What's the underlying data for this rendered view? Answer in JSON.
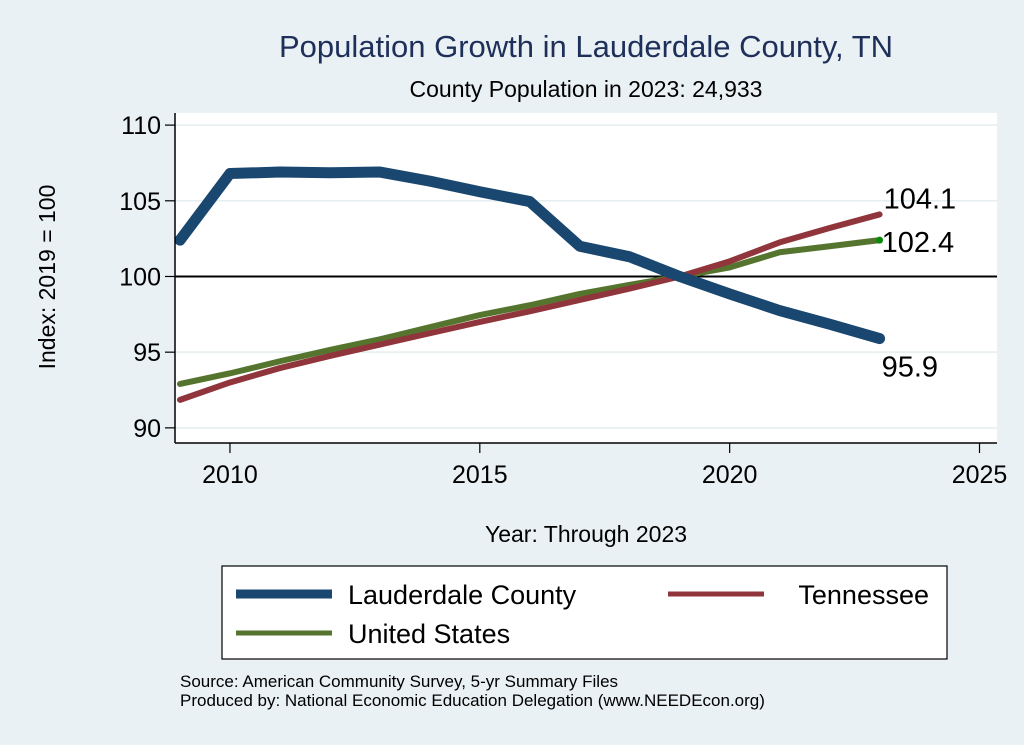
{
  "chart_data": {
    "type": "line",
    "title": "Population Growth in Lauderdale County, TN",
    "subtitle": "County Population in 2023: 24,933",
    "xlabel": "Year: Through 2023",
    "ylabel": "Index: 2019 = 100",
    "xlim": [
      2008.9,
      2025.35
    ],
    "ylim": [
      89.0,
      110.8
    ],
    "xticks": [
      2010,
      2015,
      2020,
      2025
    ],
    "yticks": [
      90,
      95,
      100,
      105,
      110
    ],
    "grid": true,
    "reference_line": 100,
    "x": [
      2009,
      2010,
      2011,
      2012,
      2013,
      2014,
      2015,
      2016,
      2017,
      2018,
      2019,
      2020,
      2021,
      2022,
      2023
    ],
    "series": [
      {
        "name": "Lauderdale  County",
        "color": "#1a476f",
        "values": [
          102.4,
          106.8,
          106.9,
          106.85,
          106.9,
          106.3,
          105.6,
          104.95,
          102.0,
          101.3,
          100.0,
          98.85,
          97.75,
          96.85,
          95.9
        ],
        "end_label": "95.9"
      },
      {
        "name": "Tennessee",
        "color": "#90353b",
        "values": [
          91.85,
          93.0,
          93.95,
          94.75,
          95.5,
          96.25,
          97.0,
          97.7,
          98.45,
          99.2,
          100.0,
          101.0,
          102.25,
          103.2,
          104.1
        ],
        "end_label": "104.1"
      },
      {
        "name": "United States",
        "color": "#55752f",
        "values": [
          92.9,
          93.6,
          94.4,
          95.15,
          95.85,
          96.65,
          97.45,
          98.1,
          98.85,
          99.45,
          100.0,
          100.6,
          101.6,
          102.0,
          102.4
        ],
        "end_label": "102.4"
      }
    ],
    "legend": {
      "placement": "bottom",
      "entries": [
        "Lauderdale  County",
        "Tennessee",
        "United States"
      ]
    },
    "notes": [
      "Source: American Community Survey, 5-yr Summary Files",
      "Produced by: National Economic Education Delegation (www.NEEDEcon.org)"
    ]
  }
}
